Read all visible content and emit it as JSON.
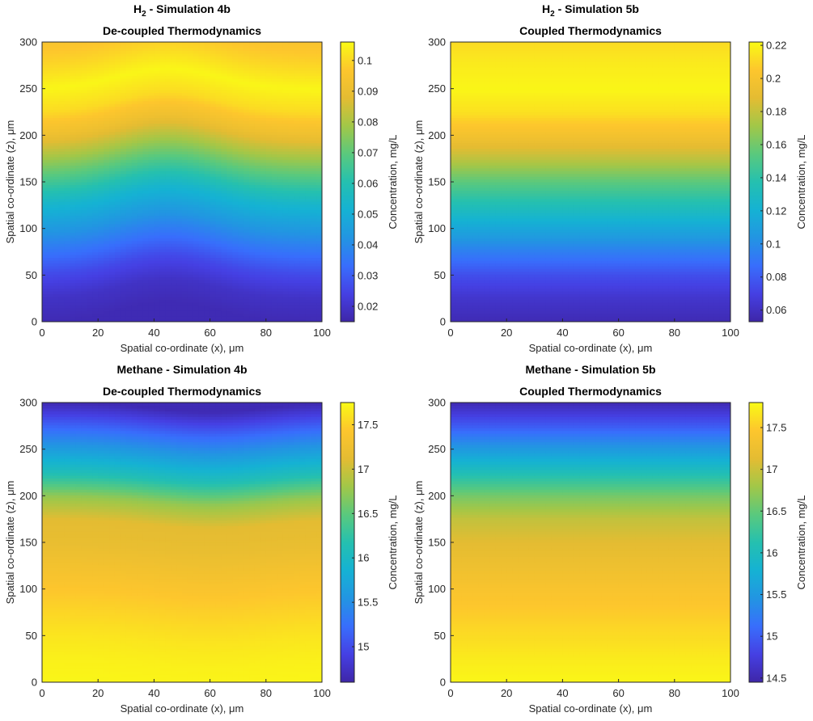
{
  "colors": {
    "parula_low": "#3e26a8",
    "parula_mid": "#25b8c8",
    "parula_high": "#f9fb15",
    "axis": "#262626"
  },
  "chart_data": [
    {
      "type": "heatmap",
      "title_species": "H",
      "title_subscript": "2",
      "title_rest": " - Simulation 4b",
      "subtitle": "De-coupled Thermodynamics",
      "xlabel": "Spatial co-ordinate (x), μm",
      "ylabel": "Spatial co-ordinate (z), μm",
      "colorbar_label": "Concentration, mg/L",
      "xlim": [
        0,
        100
      ],
      "ylim": [
        0,
        300
      ],
      "x_ticks": [
        "0",
        "20",
        "40",
        "60",
        "80",
        "100"
      ],
      "y_ticks": [
        "0",
        "50",
        "100",
        "150",
        "200",
        "250",
        "300"
      ],
      "clim": [
        0.015,
        0.106
      ],
      "cbar_ticks": [
        "0.02",
        "0.03",
        "0.04",
        "0.05",
        "0.06",
        "0.07",
        "0.08",
        "0.09",
        "0.1"
      ],
      "profile_z": [
        0,
        25,
        50,
        75,
        100,
        125,
        150,
        175,
        200,
        225,
        250,
        275,
        300
      ],
      "profile_fraction": [
        0.02,
        0.05,
        0.12,
        0.22,
        0.32,
        0.42,
        0.56,
        0.7,
        0.84,
        0.94,
        0.99,
        0.93,
        0.88
      ],
      "bump": {
        "center_x": 45,
        "width_x": 25,
        "shift_z": 22
      }
    },
    {
      "type": "heatmap",
      "title_species": "H",
      "title_subscript": "2",
      "title_rest": " - Simulation 5b",
      "subtitle": "Coupled Thermodynamics",
      "xlabel": "Spatial co-ordinate (x), μm",
      "ylabel": "Spatial co-ordinate (z), μm",
      "colorbar_label": "Concentration, mg/L",
      "xlim": [
        0,
        100
      ],
      "ylim": [
        0,
        300
      ],
      "x_ticks": [
        "0",
        "20",
        "40",
        "60",
        "80",
        "100"
      ],
      "y_ticks": [
        "0",
        "50",
        "100",
        "150",
        "200",
        "250",
        "300"
      ],
      "clim": [
        0.053,
        0.222
      ],
      "cbar_ticks": [
        "0.06",
        "0.08",
        "0.1",
        "0.12",
        "0.14",
        "0.16",
        "0.18",
        "0.2",
        "0.22"
      ],
      "profile_z": [
        0,
        25,
        50,
        75,
        100,
        125,
        150,
        175,
        200,
        225,
        250,
        275,
        300
      ],
      "profile_fraction": [
        0.02,
        0.06,
        0.13,
        0.24,
        0.36,
        0.48,
        0.6,
        0.74,
        0.86,
        0.95,
        0.99,
        0.97,
        0.94
      ],
      "bump": {
        "center_x": 45,
        "width_x": 30,
        "shift_z": 0
      }
    },
    {
      "type": "heatmap",
      "title_species": "Methane",
      "title_subscript": "",
      "title_rest": " - Simulation 4b",
      "subtitle": "De-coupled Thermodynamics",
      "xlabel": "Spatial co-ordinate (x), μm",
      "ylabel": "Spatial co-ordinate (z), μm",
      "colorbar_label": "Concentration, mg/L",
      "xlim": [
        0,
        100
      ],
      "ylim": [
        0,
        300
      ],
      "x_ticks": [
        "0",
        "20",
        "40",
        "60",
        "80",
        "100"
      ],
      "y_ticks": [
        "0",
        "50",
        "100",
        "150",
        "200",
        "250",
        "300"
      ],
      "clim": [
        14.6,
        17.75
      ],
      "cbar_ticks": [
        "15",
        "15.5",
        "16",
        "16.5",
        "17",
        "17.5"
      ],
      "profile_z": [
        0,
        25,
        50,
        75,
        100,
        125,
        150,
        175,
        200,
        225,
        250,
        275,
        300
      ],
      "profile_fraction": [
        0.99,
        0.98,
        0.96,
        0.93,
        0.9,
        0.86,
        0.82,
        0.8,
        0.68,
        0.48,
        0.33,
        0.18,
        0.02
      ],
      "bump": {
        "center_x": 60,
        "width_x": 28,
        "shift_z": -10
      }
    },
    {
      "type": "heatmap",
      "title_species": "Methane",
      "title_subscript": "",
      "title_rest": " - Simulation 5b",
      "subtitle": "Coupled Thermodynamics",
      "xlabel": "Spatial co-ordinate (x), μm",
      "ylabel": "Spatial co-ordinate (z), μm",
      "colorbar_label": "Concentration, mg/L",
      "xlim": [
        0,
        100
      ],
      "ylim": [
        0,
        300
      ],
      "x_ticks": [
        "0",
        "20",
        "40",
        "60",
        "80",
        "100"
      ],
      "y_ticks": [
        "0",
        "50",
        "100",
        "150",
        "200",
        "250",
        "300"
      ],
      "clim": [
        14.45,
        17.8
      ],
      "cbar_ticks": [
        "14.5",
        "15",
        "15.5",
        "16",
        "16.5",
        "17",
        "17.5"
      ],
      "profile_z": [
        0,
        25,
        50,
        75,
        100,
        125,
        150,
        175,
        200,
        225,
        250,
        275,
        300
      ],
      "profile_fraction": [
        0.99,
        0.97,
        0.94,
        0.91,
        0.88,
        0.84,
        0.8,
        0.75,
        0.64,
        0.48,
        0.32,
        0.16,
        0.02
      ],
      "bump": {
        "center_x": 50,
        "width_x": 30,
        "shift_z": 0
      }
    }
  ]
}
